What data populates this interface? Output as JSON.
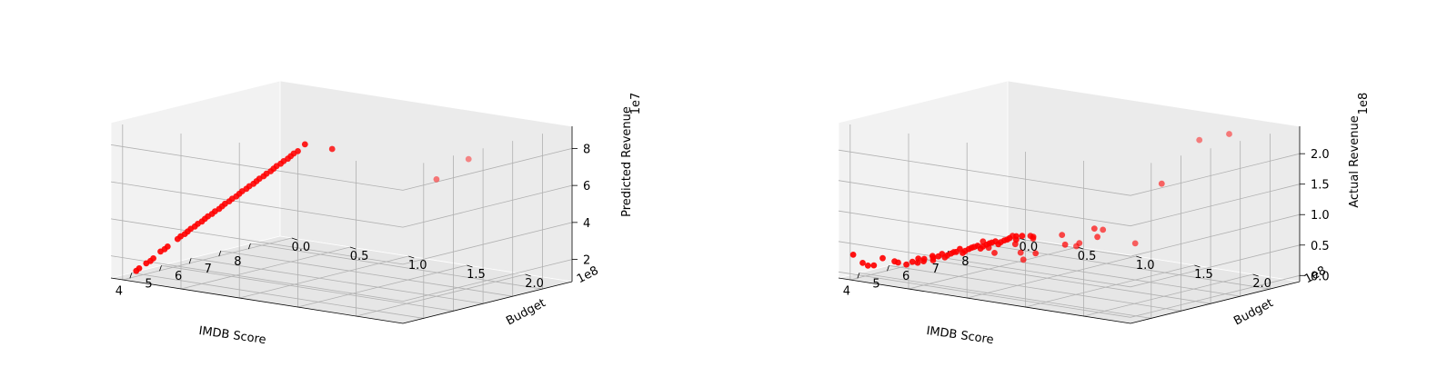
{
  "chart_data": [
    {
      "type": "scatter",
      "projection": "3d",
      "xlabel": "IMDB Score",
      "ylabel": "Budget",
      "zlabel": "Predicted Revenue",
      "x_ticks": [
        "4",
        "5",
        "6",
        "7",
        "8"
      ],
      "y_ticks": [
        "0.0",
        "0.5",
        "1.0",
        "1.5",
        "2.0"
      ],
      "y_offset": "1e8",
      "z_ticks": [
        "2",
        "4",
        "6",
        "8"
      ],
      "z_offset": "1e7",
      "xlim": [
        3.3,
        9.0
      ],
      "ylim": [
        -0.1,
        2.4
      ],
      "zlim": [
        0.8,
        9.2
      ],
      "z_tick_values": [
        2,
        4,
        6,
        8
      ],
      "marker_color": "#ff0000",
      "grid": true,
      "points": [
        [
          3.6,
          0.04,
          1.2
        ],
        [
          3.7,
          0.04,
          1.3
        ],
        [
          3.9,
          0.05,
          1.5
        ],
        [
          4.0,
          0.06,
          1.6
        ],
        [
          4.1,
          0.06,
          1.7
        ],
        [
          4.3,
          0.07,
          2.0
        ],
        [
          4.4,
          0.08,
          2.1
        ],
        [
          4.5,
          0.08,
          2.2
        ],
        [
          4.8,
          0.09,
          2.5
        ],
        [
          4.9,
          0.09,
          2.6
        ],
        [
          5.0,
          0.1,
          2.7
        ],
        [
          5.1,
          0.1,
          2.8
        ],
        [
          5.2,
          0.1,
          2.9
        ],
        [
          5.3,
          0.11,
          3.0
        ],
        [
          5.4,
          0.11,
          3.1
        ],
        [
          5.5,
          0.12,
          3.2
        ],
        [
          5.6,
          0.12,
          3.3
        ],
        [
          5.7,
          0.12,
          3.4
        ],
        [
          5.8,
          0.13,
          3.5
        ],
        [
          5.9,
          0.13,
          3.6
        ],
        [
          6.0,
          0.14,
          3.7
        ],
        [
          6.1,
          0.14,
          3.8
        ],
        [
          6.2,
          0.14,
          3.9
        ],
        [
          6.3,
          0.15,
          4.0
        ],
        [
          6.4,
          0.15,
          4.1
        ],
        [
          6.5,
          0.16,
          4.2
        ],
        [
          6.6,
          0.16,
          4.3
        ],
        [
          6.7,
          0.16,
          4.4
        ],
        [
          6.8,
          0.17,
          4.5
        ],
        [
          6.9,
          0.17,
          4.6
        ],
        [
          7.0,
          0.18,
          4.7
        ],
        [
          7.1,
          0.18,
          4.8
        ],
        [
          7.2,
          0.18,
          4.9
        ],
        [
          7.3,
          0.19,
          5.0
        ],
        [
          7.4,
          0.19,
          5.1
        ],
        [
          7.5,
          0.2,
          5.2
        ],
        [
          7.6,
          0.2,
          5.3
        ],
        [
          7.7,
          0.2,
          5.4
        ],
        [
          7.8,
          0.21,
          5.5
        ],
        [
          7.9,
          0.21,
          5.6
        ],
        [
          8.0,
          0.22,
          5.7
        ],
        [
          8.1,
          0.22,
          5.8
        ],
        [
          8.2,
          0.22,
          5.9
        ],
        [
          8.3,
          0.23,
          6.0
        ],
        [
          8.5,
          0.24,
          6.3
        ],
        [
          6.2,
          1.95,
          7.0
        ],
        [
          6.3,
          2.2,
          8.3
        ],
        [
          8.0,
          0.6,
          6.6
        ]
      ]
    },
    {
      "type": "scatter",
      "projection": "3d",
      "xlabel": "IMDB Score",
      "ylabel": "Budget",
      "zlabel": "Actual Revenue",
      "x_ticks": [
        "4",
        "5",
        "6",
        "7",
        "8"
      ],
      "y_ticks": [
        "0.0",
        "0.5",
        "1.0",
        "1.5",
        "2.0"
      ],
      "y_offset": "1e8",
      "z_ticks": [
        "0.0",
        "0.5",
        "1.0",
        "1.5",
        "2.0"
      ],
      "z_offset": "1e8",
      "xlim": [
        3.3,
        9.0
      ],
      "ylim": [
        -0.1,
        2.4
      ],
      "zlim": [
        -0.1,
        2.45
      ],
      "z_tick_values": [
        0.0,
        0.5,
        1.0,
        1.5,
        2.0
      ],
      "marker_color": "#ff0000",
      "grid": true,
      "points": [
        [
          3.4,
          0.0,
          0.3
        ],
        [
          3.6,
          0.03,
          0.15
        ],
        [
          3.7,
          0.05,
          0.1
        ],
        [
          3.9,
          0.05,
          0.08
        ],
        [
          4.0,
          0.1,
          0.2
        ],
        [
          4.4,
          0.1,
          0.1
        ],
        [
          4.6,
          0.08,
          0.05
        ],
        [
          4.8,
          0.1,
          0.0
        ],
        [
          5.0,
          0.1,
          0.02
        ],
        [
          5.1,
          0.12,
          0.0
        ],
        [
          5.2,
          0.1,
          0.05
        ],
        [
          5.3,
          0.12,
          0.0
        ],
        [
          5.4,
          0.1,
          0.02
        ],
        [
          5.5,
          0.15,
          0.0
        ],
        [
          5.6,
          0.12,
          0.05
        ],
        [
          5.7,
          0.1,
          0.0
        ],
        [
          5.8,
          0.12,
          0.02
        ],
        [
          5.9,
          0.15,
          0.0
        ],
        [
          6.0,
          0.1,
          0.03
        ],
        [
          6.1,
          0.12,
          0.0
        ],
        [
          6.2,
          0.15,
          0.05
        ],
        [
          6.3,
          0.1,
          0.0
        ],
        [
          6.4,
          0.12,
          0.02
        ],
        [
          6.5,
          0.15,
          0.0
        ],
        [
          6.6,
          0.1,
          0.04
        ],
        [
          6.7,
          0.12,
          0.0
        ],
        [
          6.8,
          0.15,
          0.05
        ],
        [
          6.9,
          0.1,
          0.0
        ],
        [
          7.0,
          0.12,
          0.03
        ],
        [
          7.1,
          0.15,
          0.0
        ],
        [
          7.2,
          0.1,
          0.02
        ],
        [
          7.3,
          0.12,
          0.0
        ],
        [
          7.4,
          0.15,
          0.05
        ],
        [
          7.5,
          0.1,
          0.0
        ],
        [
          7.6,
          0.12,
          0.03
        ],
        [
          7.7,
          0.15,
          0.0
        ],
        [
          7.8,
          0.1,
          0.02
        ],
        [
          7.9,
          0.12,
          0.0
        ],
        [
          8.0,
          0.15,
          0.04
        ],
        [
          8.1,
          0.1,
          0.0
        ],
        [
          8.2,
          0.12,
          0.03
        ],
        [
          8.3,
          0.15,
          0.0
        ],
        [
          8.5,
          0.1,
          0.02
        ],
        [
          8.7,
          0.1,
          0.0
        ],
        [
          6.0,
          0.5,
          0.25
        ],
        [
          6.2,
          0.4,
          0.3
        ],
        [
          6.5,
          0.6,
          0.28
        ],
        [
          6.8,
          0.5,
          0.35
        ],
        [
          7.1,
          0.6,
          0.3
        ],
        [
          7.5,
          0.5,
          0.25
        ],
        [
          7.8,
          0.4,
          0.2
        ],
        [
          6.4,
          0.8,
          0.2
        ],
        [
          7.0,
          0.9,
          0.3
        ],
        [
          5.8,
          0.6,
          0.22
        ],
        [
          6.3,
          1.2,
          0.5
        ],
        [
          6.5,
          1.0,
          0.55
        ],
        [
          7.2,
          1.1,
          0.6
        ],
        [
          6.7,
          1.3,
          0.7
        ],
        [
          7.0,
          1.5,
          0.5
        ],
        [
          7.3,
          1.1,
          0.45
        ],
        [
          5.2,
          1.0,
          0.3
        ],
        [
          6.0,
          1.25,
          0.5
        ],
        [
          5.5,
          0.9,
          0.35
        ],
        [
          6.8,
          2.1,
          2.4
        ],
        [
          8.2,
          2.0,
          2.3
        ],
        [
          7.5,
          1.6,
          1.45
        ]
      ]
    }
  ]
}
